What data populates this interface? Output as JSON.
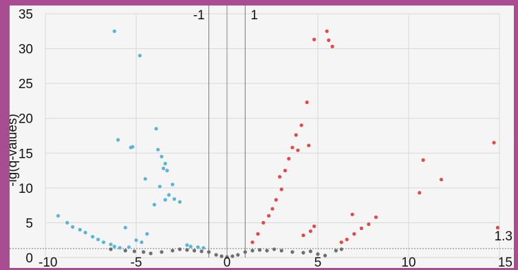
{
  "chart_data": {
    "type": "scatter",
    "title": "",
    "xlabel": "",
    "ylabel": "-lg(q-values)",
    "xlim": [
      -10,
      15
    ],
    "ylim": [
      0,
      35
    ],
    "x_ticks": [
      "-10",
      "-5",
      "0",
      "5",
      "10",
      "15"
    ],
    "y_ticks": [
      "0",
      "5",
      "10",
      "15",
      "20",
      "25",
      "30",
      "35"
    ],
    "grid": true,
    "reference_lines": {
      "vertical": [
        {
          "x": -1,
          "label": "-1"
        },
        {
          "x": 1,
          "label": "1"
        }
      ],
      "horizontal": [
        {
          "y": 1.3,
          "label": "1.3"
        }
      ]
    },
    "colors": {
      "down": "#5ab4d6",
      "up": "#e24a4a",
      "not_significant": "#6e6e6e",
      "ref_line": "#777777",
      "grid": "#d8d8d8"
    },
    "series": [
      {
        "key": "down",
        "points": [
          [
            -6.2,
            32.5
          ],
          [
            -4.8,
            29.0
          ],
          [
            -3.9,
            18.5
          ],
          [
            -6.0,
            16.9
          ],
          [
            -5.3,
            15.8
          ],
          [
            -5.2,
            15.9
          ],
          [
            -3.8,
            15.5
          ],
          [
            -3.6,
            14.5
          ],
          [
            -3.4,
            13.5
          ],
          [
            -3.3,
            12.5
          ],
          [
            -3.5,
            12.8
          ],
          [
            -4.5,
            11.3
          ],
          [
            -3.7,
            10.2
          ],
          [
            -3.0,
            10.5
          ],
          [
            -3.2,
            9.0
          ],
          [
            -2.9,
            8.4
          ],
          [
            -3.4,
            8.3
          ],
          [
            -2.6,
            8.0
          ],
          [
            -4.0,
            7.6
          ],
          [
            -9.3,
            6.0
          ],
          [
            -8.8,
            5.0
          ],
          [
            -8.5,
            4.4
          ],
          [
            -8.1,
            4.0
          ],
          [
            -7.8,
            3.6
          ],
          [
            -7.4,
            3.0
          ],
          [
            -7.1,
            2.6
          ],
          [
            -6.8,
            2.2
          ],
          [
            -6.4,
            1.9
          ],
          [
            -6.2,
            1.6
          ],
          [
            -5.9,
            1.4
          ],
          [
            -5.6,
            4.3
          ],
          [
            -5.4,
            1.5
          ],
          [
            -5.0,
            2.5
          ],
          [
            -4.7,
            2.2
          ],
          [
            -4.4,
            3.4
          ],
          [
            -2.2,
            1.8
          ],
          [
            -2.0,
            1.6
          ],
          [
            -1.6,
            1.5
          ],
          [
            -1.3,
            1.4
          ]
        ]
      },
      {
        "key": "up",
        "points": [
          [
            5.5,
            32.5
          ],
          [
            4.8,
            31.3
          ],
          [
            5.6,
            31.2
          ],
          [
            5.8,
            30.3
          ],
          [
            4.4,
            22.3
          ],
          [
            4.1,
            19.0
          ],
          [
            3.8,
            17.6
          ],
          [
            4.5,
            16.1
          ],
          [
            3.6,
            15.8
          ],
          [
            3.9,
            15.4
          ],
          [
            3.4,
            14.2
          ],
          [
            3.2,
            12.5
          ],
          [
            2.9,
            11.6
          ],
          [
            3.0,
            9.8
          ],
          [
            2.7,
            8.3
          ],
          [
            2.5,
            7.0
          ],
          [
            2.3,
            6.0
          ],
          [
            2.0,
            5.0
          ],
          [
            1.7,
            3.4
          ],
          [
            1.4,
            2.2
          ],
          [
            14.7,
            16.5
          ],
          [
            10.8,
            14.0
          ],
          [
            11.8,
            11.2
          ],
          [
            10.6,
            9.3
          ],
          [
            14.9,
            4.3
          ],
          [
            6.9,
            6.2
          ],
          [
            8.2,
            5.8
          ],
          [
            7.8,
            4.8
          ],
          [
            7.4,
            4.2
          ],
          [
            7.0,
            3.4
          ],
          [
            6.6,
            2.6
          ],
          [
            6.3,
            2.2
          ],
          [
            4.8,
            4.5
          ],
          [
            4.6,
            3.8
          ],
          [
            4.2,
            3.2
          ]
        ]
      },
      {
        "key": "not_significant",
        "points": [
          [
            -6.4,
            1.2
          ],
          [
            -5.6,
            1.0
          ],
          [
            -5.1,
            0.9
          ],
          [
            -4.6,
            0.8
          ],
          [
            -4.2,
            0.6
          ],
          [
            -3.6,
            0.8
          ],
          [
            -3.0,
            1.0
          ],
          [
            -2.6,
            1.2
          ],
          [
            -2.2,
            1.1
          ],
          [
            -1.8,
            1.0
          ],
          [
            -1.4,
            0.9
          ],
          [
            -1.0,
            0.8
          ],
          [
            -0.6,
            0.4
          ],
          [
            -0.3,
            0.2
          ],
          [
            0.0,
            0.1
          ],
          [
            0.3,
            0.2
          ],
          [
            0.6,
            0.4
          ],
          [
            1.0,
            0.8
          ],
          [
            1.4,
            1.0
          ],
          [
            1.8,
            1.1
          ],
          [
            2.2,
            1.0
          ],
          [
            2.6,
            1.2
          ],
          [
            3.0,
            1.0
          ],
          [
            3.6,
            0.8
          ],
          [
            4.2,
            0.7
          ],
          [
            4.6,
            0.9
          ],
          [
            5.0,
            0.5
          ],
          [
            5.4,
            0.3
          ],
          [
            6.0,
            1.0
          ],
          [
            6.3,
            1.2
          ]
        ]
      }
    ]
  }
}
